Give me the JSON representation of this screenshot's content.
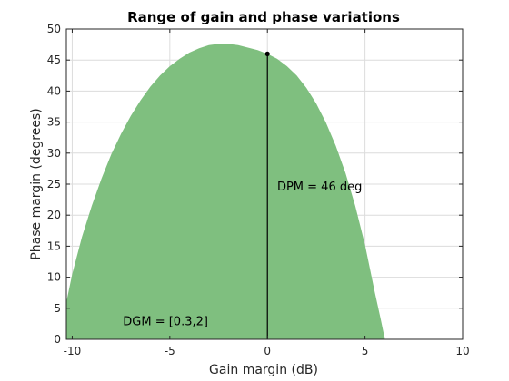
{
  "chart_data": {
    "type": "area",
    "title": "Range of gain and phase variations",
    "xlabel": "Gain margin (dB)",
    "ylabel": "Phase margin (degrees)",
    "xlim": [
      -10.3,
      10
    ],
    "ylim": [
      0,
      50
    ],
    "xticks": [
      -10,
      -5,
      0,
      5,
      10
    ],
    "yticks": [
      0,
      5,
      10,
      15,
      20,
      25,
      30,
      35,
      40,
      45,
      50
    ],
    "grid": true,
    "box": true,
    "fill_color": "#7fbf7f",
    "series": [
      {
        "x": [
          -10.3,
          -10,
          -9.5,
          -9,
          -8.5,
          -8,
          -7.5,
          -7,
          -6.5,
          -6,
          -5.5,
          -5,
          -4.5,
          -4,
          -3.5,
          -3,
          -2.5,
          -2.2,
          -2,
          -1.5,
          -1,
          -0.5,
          0,
          0.5,
          1,
          1.5,
          2,
          2.5,
          3,
          3.5,
          4,
          4.5,
          5,
          5.5,
          5.8,
          6.02
        ],
        "y": [
          6,
          10.5,
          16.5,
          21.5,
          25.9,
          29.8,
          33.1,
          36,
          38.5,
          40.7,
          42.5,
          44,
          45.2,
          46.2,
          46.9,
          47.4,
          47.6,
          47.65,
          47.6,
          47.4,
          47,
          46.6,
          46,
          45.2,
          44,
          42.5,
          40.5,
          38,
          34.9,
          31.2,
          26.8,
          21.5,
          15.2,
          7.6,
          3.3,
          0
        ]
      }
    ],
    "annotations": [
      {
        "text": "DPM = 46 deg",
        "marker": {
          "x": 0,
          "y": 46
        },
        "line": {
          "x": 0,
          "y_from": 0,
          "y_to": 46
        },
        "label_anchor": {
          "x": 0.5,
          "y": 24
        }
      },
      {
        "text": "DGM = [0.3,2]",
        "label_anchor": {
          "x": -7.4,
          "y": 2.3
        }
      }
    ]
  }
}
